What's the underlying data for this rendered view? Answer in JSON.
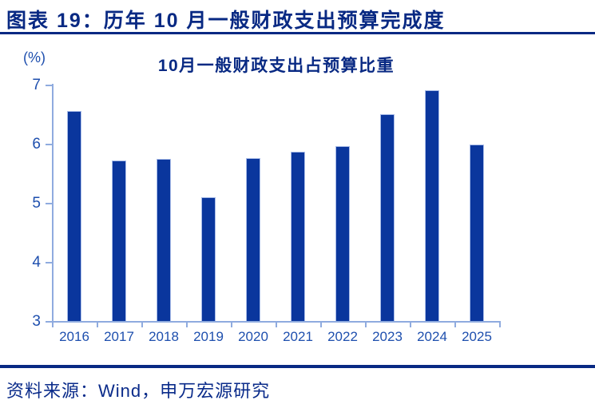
{
  "header": {
    "title": "图表 19：历年 10 月一般财政支出预算完成度"
  },
  "chart_data": {
    "type": "bar",
    "title": "10月一般财政支出占预算比重",
    "unit_label": "(%)",
    "xlabel": "",
    "ylabel": "(%)",
    "categories": [
      "2016",
      "2017",
      "2018",
      "2019",
      "2020",
      "2021",
      "2022",
      "2023",
      "2024",
      "2025"
    ],
    "values": [
      6.55,
      5.71,
      5.74,
      5.09,
      5.76,
      5.87,
      5.96,
      6.5,
      6.91,
      5.98
    ],
    "ylim": [
      3,
      7
    ],
    "yticks": [
      3,
      4,
      5,
      6,
      7
    ],
    "grid": "off",
    "legend": "none"
  },
  "footer": {
    "source": "资料来源：Wind，申万宏源研究"
  },
  "theme": {
    "navy": "#082983",
    "tick_blue": "#1E4FAE",
    "axis_blue": "#8FABDF",
    "bar_blue": "#0A369D",
    "bar_edge": "#A9BCE8",
    "source_blue": "#0A2B8A"
  }
}
